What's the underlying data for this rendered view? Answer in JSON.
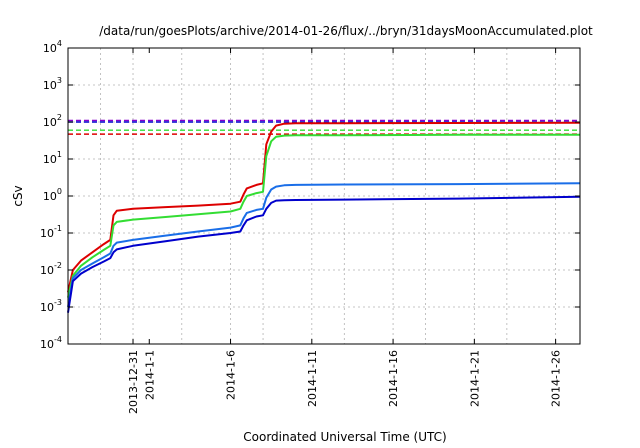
{
  "chart_data": {
    "type": "line",
    "title": "/data/run/goesPlots/archive/2014-01-26/flux/../bryn/31daysMoonAccumulated.plot",
    "xlabel": "Coordinated Universal Time (UTC)",
    "ylabel": "cSv",
    "y_scale": "log",
    "ylim": [
      0.0001,
      10000
    ],
    "xlim": [
      "2013-12-27",
      "2014-01-27.5"
    ],
    "grid": true,
    "legend": "none",
    "y_ticks": [
      {
        "base": "10",
        "exp": "-4",
        "value": 0.0001
      },
      {
        "base": "10",
        "exp": "-3",
        "value": 0.001
      },
      {
        "base": "10",
        "exp": "-2",
        "value": 0.01
      },
      {
        "base": "10",
        "exp": "-1",
        "value": 0.1
      },
      {
        "base": "10",
        "exp": "0",
        "value": 1
      },
      {
        "base": "10",
        "exp": "1",
        "value": 10
      },
      {
        "base": "10",
        "exp": "2",
        "value": 100
      },
      {
        "base": "10",
        "exp": "3",
        "value": 1000
      },
      {
        "base": "10",
        "exp": "4",
        "value": 10000
      }
    ],
    "x_ticks": [
      {
        "label": "2013-12-31",
        "date": "2013-12-31"
      },
      {
        "label": "2014-1-1",
        "date": "2014-01-01"
      },
      {
        "label": "2014-1-6",
        "date": "2014-01-06"
      },
      {
        "label": "2014-1-11",
        "date": "2014-01-11"
      },
      {
        "label": "2014-1-16",
        "date": "2014-01-16"
      },
      {
        "label": "2014-1-21",
        "date": "2014-01-21"
      },
      {
        "label": "2014-1-26",
        "date": "2014-01-26"
      }
    ],
    "grid_dates": [
      "2013-12-29",
      "2013-12-31",
      "2014-01-03",
      "2014-01-06",
      "2014-01-08",
      "2014-01-11",
      "2014-01-13",
      "2014-01-16",
      "2014-01-18",
      "2014-01-21",
      "2014-01-23",
      "2014-01-26"
    ],
    "thresholds": [
      {
        "value": 110,
        "color": "#8800cc"
      },
      {
        "value": 100,
        "color": "#0000cc"
      },
      {
        "value": 60,
        "color": "#33dd33"
      },
      {
        "value": 47,
        "color": "#dd0000"
      }
    ],
    "series": [
      {
        "color": "#dd0000",
        "x": [
          "2013-12-27",
          "2013-12-27.3",
          "2013-12-27.8",
          "2013-12-28.5",
          "2013-12-29.2",
          "2013-12-29.6",
          "2013-12-29.8",
          "2013-12-30",
          "2013-12-31",
          "2014-01-02",
          "2014-01-04",
          "2014-01-06",
          "2014-01-06.6",
          "2014-01-06.8",
          "2014-01-07",
          "2014-01-07.6",
          "2014-01-08",
          "2014-01-08.2",
          "2014-01-08.5",
          "2014-01-08.8",
          "2014-01-09.3",
          "2014-01-10",
          "2014-01-13",
          "2014-01-20",
          "2014-01-27.5"
        ],
        "values": [
          0.0025,
          0.01,
          0.018,
          0.03,
          0.05,
          0.065,
          0.3,
          0.4,
          0.45,
          0.5,
          0.55,
          0.62,
          0.7,
          1.1,
          1.6,
          2.0,
          2.2,
          25,
          55,
          80,
          90,
          92,
          93,
          94,
          95
        ]
      },
      {
        "color": "#33dd33",
        "x": [
          "2013-12-27",
          "2013-12-27.3",
          "2013-12-27.8",
          "2013-12-28.5",
          "2013-12-29.2",
          "2013-12-29.6",
          "2013-12-29.8",
          "2013-12-30",
          "2013-12-31",
          "2014-01-02",
          "2014-01-04",
          "2014-01-06",
          "2014-01-06.6",
          "2014-01-06.8",
          "2014-01-07",
          "2014-01-07.6",
          "2014-01-08",
          "2014-01-08.2",
          "2014-01-08.5",
          "2014-01-08.8",
          "2014-01-09.3",
          "2014-01-10",
          "2014-01-13",
          "2014-01-20",
          "2014-01-27.5"
        ],
        "values": [
          0.0018,
          0.007,
          0.013,
          0.022,
          0.035,
          0.045,
          0.16,
          0.2,
          0.23,
          0.27,
          0.32,
          0.38,
          0.45,
          0.7,
          1.0,
          1.2,
          1.3,
          12,
          30,
          40,
          43,
          44,
          44,
          45,
          45
        ]
      },
      {
        "color": "#1a6ee8",
        "x": [
          "2013-12-27",
          "2013-12-27.3",
          "2013-12-27.8",
          "2013-12-28.5",
          "2013-12-29.2",
          "2013-12-29.6",
          "2013-12-29.8",
          "2013-12-30",
          "2013-12-31",
          "2014-01-02",
          "2014-01-04",
          "2014-01-06",
          "2014-01-06.6",
          "2014-01-06.8",
          "2014-01-07",
          "2014-01-07.6",
          "2014-01-08",
          "2014-01-08.2",
          "2014-01-08.5",
          "2014-01-08.8",
          "2014-01-09.3",
          "2014-01-10",
          "2014-01-13",
          "2014-01-20",
          "2014-01-27.5"
        ],
        "values": [
          0.001,
          0.006,
          0.01,
          0.015,
          0.022,
          0.028,
          0.045,
          0.055,
          0.065,
          0.085,
          0.11,
          0.14,
          0.16,
          0.25,
          0.35,
          0.42,
          0.45,
          0.9,
          1.5,
          1.8,
          1.95,
          2.0,
          2.05,
          2.1,
          2.2
        ]
      },
      {
        "color": "#0000cc",
        "x": [
          "2013-12-27",
          "2013-12-27.3",
          "2013-12-27.8",
          "2013-12-28.5",
          "2013-12-29.2",
          "2013-12-29.6",
          "2013-12-29.8",
          "2013-12-30",
          "2013-12-31",
          "2014-01-02",
          "2014-01-04",
          "2014-01-06",
          "2014-01-06.6",
          "2014-01-06.8",
          "2014-01-07",
          "2014-01-07.6",
          "2014-01-08",
          "2014-01-08.2",
          "2014-01-08.5",
          "2014-01-08.8",
          "2014-01-09.3",
          "2014-01-10",
          "2014-01-13",
          "2014-01-20",
          "2014-01-27.5"
        ],
        "values": [
          0.0007,
          0.005,
          0.008,
          0.012,
          0.017,
          0.021,
          0.03,
          0.036,
          0.045,
          0.06,
          0.08,
          0.1,
          0.11,
          0.16,
          0.22,
          0.28,
          0.3,
          0.45,
          0.65,
          0.75,
          0.77,
          0.78,
          0.8,
          0.85,
          0.95
        ]
      }
    ]
  }
}
